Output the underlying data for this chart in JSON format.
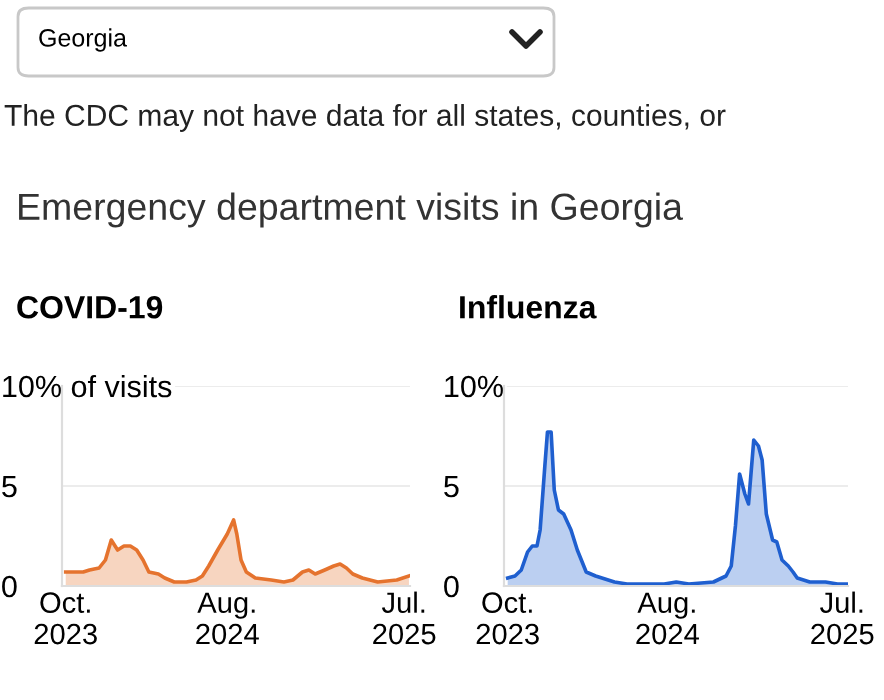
{
  "chart_data": [
    {
      "type": "area",
      "title": "COVID-19",
      "annotations": [
        "Georgia",
        "The CDC may not have data for all states, counties, or",
        "Emergency department visits in Georgia"
      ],
      "x": [
        "2023-10-01",
        "2023-11-03",
        "2023-11-15",
        "2023-12-03",
        "2023-12-15",
        "2023-12-26",
        "2024-01-07",
        "2024-01-19",
        "2024-01-31",
        "2024-02-12",
        "2024-02-24",
        "2024-03-06",
        "2024-03-24",
        "2024-04-05",
        "2024-04-23",
        "2024-05-16",
        "2024-06-03",
        "2024-06-15",
        "2024-06-27",
        "2024-07-14",
        "2024-08-01",
        "2024-08-13",
        "2024-08-19",
        "2024-08-27",
        "2024-09-06",
        "2024-09-23",
        "2024-10-23",
        "2024-11-16",
        "2024-12-03",
        "2024-12-21",
        "2025-01-02",
        "2025-01-14",
        "2025-02-01",
        "2025-02-18",
        "2025-03-02",
        "2025-03-14",
        "2025-03-26",
        "2025-04-13",
        "2025-05-12",
        "2025-06-17",
        "2025-07-10"
      ],
      "series": [
        {
          "color": "#e5732e",
          "values": [
            0.7,
            0.7,
            0.8,
            0.9,
            1.3,
            2.3,
            1.8,
            2.0,
            2.0,
            1.8,
            1.3,
            0.7,
            0.6,
            0.4,
            0.2,
            0.2,
            0.3,
            0.5,
            1.0,
            1.8,
            2.6,
            3.3,
            2.6,
            1.3,
            0.7,
            0.4,
            0.3,
            0.2,
            0.3,
            0.7,
            0.8,
            0.6,
            0.8,
            1.0,
            1.1,
            0.9,
            0.6,
            0.4,
            0.2,
            0.3,
            0.5
          ]
        }
      ],
      "xlim": [
        "2023-09-24",
        "2025-07-12"
      ],
      "xticks": [
        {
          "value": "2023-10-01",
          "label": "Oct.\n2023"
        },
        {
          "value": "2024-08-01",
          "label": "Aug.\n2024"
        },
        {
          "value": "2025-07-01",
          "label": "Jul.\n2025"
        }
      ],
      "ylim": [
        0,
        10
      ],
      "yticks": [
        0,
        5,
        {
          "value": 10,
          "label": "10% of visits"
        }
      ],
      "grid": "y"
    },
    {
      "type": "area",
      "title": "Influenza",
      "x": [
        "2023-10-01",
        "2023-10-15",
        "2023-10-27",
        "2023-11-08",
        "2023-11-17",
        "2023-11-26",
        "2023-12-02",
        "2023-12-11",
        "2023-12-16",
        "2023-12-23",
        "2023-12-29",
        "2024-01-06",
        "2024-01-16",
        "2024-01-30",
        "2024-02-11",
        "2024-02-28",
        "2024-03-17",
        "2024-04-22",
        "2024-05-16",
        "2024-07-26",
        "2024-08-18",
        "2024-09-11",
        "2024-10-28",
        "2024-11-21",
        "2024-12-01",
        "2024-12-09",
        "2024-12-17",
        "2024-12-27",
        "2025-01-03",
        "2025-01-13",
        "2025-01-22",
        "2025-01-29",
        "2025-02-06",
        "2025-02-18",
        "2025-02-26",
        "2025-03-08",
        "2025-03-20",
        "2025-03-29",
        "2025-04-06",
        "2025-04-30",
        "2025-05-30",
        "2025-06-22",
        "2025-07-10"
      ],
      "series": [
        {
          "color": "#1f5fcf",
          "values": [
            0.4,
            0.5,
            0.8,
            1.7,
            2.0,
            2.0,
            2.8,
            6.0,
            7.7,
            7.7,
            4.8,
            3.8,
            3.6,
            2.8,
            1.8,
            0.7,
            0.5,
            0.2,
            0.1,
            0.1,
            0.2,
            0.1,
            0.2,
            0.5,
            1.0,
            3.0,
            5.6,
            4.6,
            4.1,
            7.3,
            7.0,
            6.3,
            3.6,
            2.3,
            2.2,
            1.3,
            1.0,
            0.7,
            0.4,
            0.2,
            0.2,
            0.1,
            0.1
          ]
        }
      ],
      "xlim": [
        "2023-09-24",
        "2025-07-12"
      ],
      "xticks": [
        {
          "value": "2023-10-01",
          "label": "Oct.\n2023"
        },
        {
          "value": "2024-08-01",
          "label": "Aug.\n2024"
        },
        {
          "value": "2025-07-01",
          "label": "Jul.\n2025"
        }
      ],
      "ylim": [
        0,
        10
      ],
      "yticks": [
        0,
        5,
        {
          "value": 10,
          "label": "10%"
        }
      ],
      "grid": "y"
    }
  ]
}
